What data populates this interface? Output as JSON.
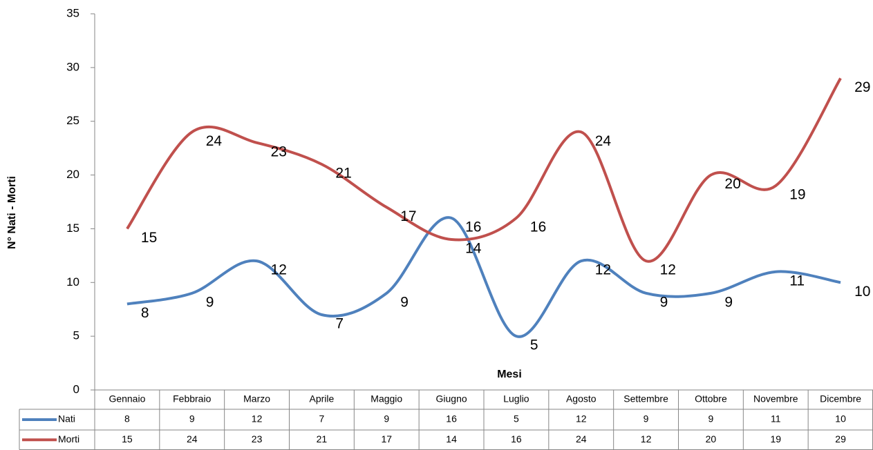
{
  "chart_data": {
    "type": "line",
    "x_label": "Mesi",
    "y_label": "N° Nati - Morti",
    "categories": [
      "Gennaio",
      "Febbraio",
      "Marzo",
      "Aprile",
      "Maggio",
      "Giugno",
      "Luglio",
      "Agosto",
      "Settembre",
      "Ottobre",
      "Novembre",
      "Dicembre"
    ],
    "series": [
      {
        "name": "Nati",
        "color": "#4f81bd",
        "values": [
          8,
          9,
          12,
          7,
          9,
          16,
          5,
          12,
          9,
          9,
          11,
          10
        ]
      },
      {
        "name": "Morti",
        "color": "#c0504d",
        "values": [
          15,
          24,
          23,
          21,
          17,
          14,
          16,
          24,
          12,
          20,
          19,
          29
        ]
      }
    ],
    "ylim": [
      0,
      35
    ],
    "yticks": [
      0,
      5,
      10,
      15,
      20,
      25,
      30,
      35
    ],
    "smooth": true,
    "data_table": true
  }
}
